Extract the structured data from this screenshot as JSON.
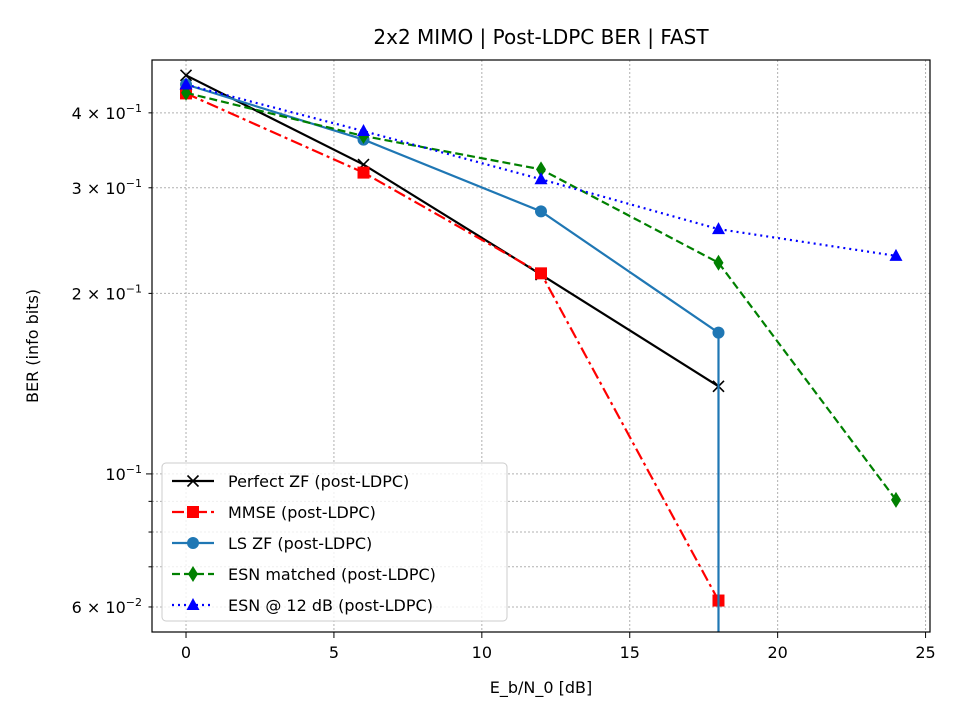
{
  "chart_data": {
    "type": "line",
    "title": "2x2 MIMO | Post-LDPC BER | FAST",
    "xlabel": "E_b/N_0 [dB]",
    "ylabel": "BER (info bits)",
    "xlim": [
      -1.15,
      25.15
    ],
    "ylim": [
      0.0545,
      0.49
    ],
    "yscale": "log",
    "grid": true,
    "legend_position": "lower-left",
    "x_ticks": [
      {
        "value": 0,
        "label": "0"
      },
      {
        "value": 5,
        "label": "5"
      },
      {
        "value": 10,
        "label": "10"
      },
      {
        "value": 15,
        "label": "15"
      },
      {
        "value": 20,
        "label": "20"
      },
      {
        "value": 25,
        "label": "25"
      }
    ],
    "y_major_ticks": [
      {
        "value": 0.1,
        "mant": "10",
        "exp": "−1"
      }
    ],
    "y_minor_ticks": [
      {
        "value": 0.06,
        "mant": "6 × 10",
        "exp": "−2"
      },
      {
        "value": 0.2,
        "mant": "2 × 10",
        "exp": "−1"
      },
      {
        "value": 0.3,
        "mant": "3 × 10",
        "exp": "−1"
      },
      {
        "value": 0.4,
        "mant": "4 × 10",
        "exp": "−1"
      }
    ],
    "y_minor_unlabeled": [
      0.07,
      0.08,
      0.09
    ],
    "series": [
      {
        "name": "Perfect ZF (post-LDPC)",
        "color": "#000000",
        "dash": "",
        "marker": "x",
        "x": [
          0,
          6,
          12,
          18
        ],
        "y": [
          0.462,
          0.328,
          0.215,
          0.14
        ]
      },
      {
        "name": "MMSE (post-LDPC)",
        "color": "#ff0000",
        "dash": "12,4,3,4",
        "marker": "square",
        "x": [
          0,
          6,
          12,
          18
        ],
        "y": [
          0.431,
          0.318,
          0.216,
          0.0615
        ]
      },
      {
        "name": "LS ZF (post-LDPC)",
        "color": "#1f77b4",
        "dash": "",
        "marker": "circle",
        "x": [
          0,
          6,
          12,
          18
        ],
        "y": [
          0.446,
          0.361,
          0.274,
          0.172
        ],
        "drop_to_axis": true
      },
      {
        "name": "ESN matched (post-LDPC)",
        "color": "#008000",
        "dash": "8,4",
        "marker": "thin_diamond",
        "x": [
          0,
          6,
          12,
          18,
          24
        ],
        "y": [
          0.432,
          0.366,
          0.322,
          0.225,
          0.0905
        ]
      },
      {
        "name": "ESN @ 12 dB (post-LDPC)",
        "color": "#0000ff",
        "dash": "2,4",
        "marker": "triangle",
        "x": [
          0,
          6,
          12,
          18,
          24
        ],
        "y": [
          0.446,
          0.373,
          0.31,
          0.256,
          0.231
        ]
      }
    ]
  }
}
